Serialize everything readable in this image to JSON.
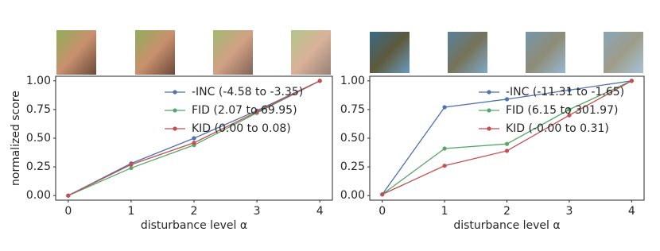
{
  "chart_data": [
    {
      "type": "line",
      "ylabel": "normalized score",
      "xlabel": "disturbance level α",
      "x": [
        0,
        1,
        2,
        3,
        4
      ],
      "xlim": [
        -0.2,
        4.2
      ],
      "xticks": [
        0,
        1,
        2,
        3,
        4
      ],
      "ylim": [
        -0.04,
        1.04
      ],
      "yticks": [
        {
          "value": 0,
          "label": "0.00"
        },
        {
          "value": 0.25,
          "label": "0.25"
        },
        {
          "value": 0.5,
          "label": "0.50"
        },
        {
          "value": 0.75,
          "label": "0.75"
        },
        {
          "value": 1,
          "label": "1.00"
        }
      ],
      "series": [
        {
          "name": "-INC (-4.58 to -3.35)",
          "color": "#4c72b0",
          "values": [
            0,
            0.28,
            0.5,
            0.74,
            1.0
          ]
        },
        {
          "name": "FID (2.07 to 69.95)",
          "color": "#55a868",
          "values": [
            0,
            0.24,
            0.44,
            0.72,
            1.0
          ]
        },
        {
          "name": "KID (0.00 to 0.08)",
          "color": "#c44e52",
          "values": [
            0,
            0.27,
            0.46,
            0.73,
            1.0
          ]
        }
      ]
    },
    {
      "type": "line",
      "xlabel": "disturbance level α",
      "x": [
        0,
        1,
        2,
        3,
        4
      ],
      "xlim": [
        -0.2,
        4.2
      ],
      "xticks": [
        0,
        1,
        2,
        3,
        4
      ],
      "ylim": [
        -0.04,
        1.04
      ],
      "yticks": [
        {
          "value": 0,
          "label": "0.00"
        },
        {
          "value": 0.25,
          "label": "0.25"
        },
        {
          "value": 0.5,
          "label": "0.50"
        },
        {
          "value": 0.75,
          "label": "0.75"
        },
        {
          "value": 1,
          "label": "1.00"
        }
      ],
      "series": [
        {
          "name": "-INC (-11.31 to -1.65)",
          "color": "#4c72b0",
          "values": [
            0.01,
            0.77,
            0.84,
            0.92,
            1.0
          ]
        },
        {
          "name": "FID (6.15 to 301.97)",
          "color": "#55a868",
          "values": [
            0.01,
            0.41,
            0.45,
            0.75,
            1.0
          ]
        },
        {
          "name": "KID (-0.00 to 0.31)",
          "color": "#c44e52",
          "values": [
            0.01,
            0.26,
            0.39,
            0.7,
            1.0
          ]
        }
      ]
    }
  ]
}
